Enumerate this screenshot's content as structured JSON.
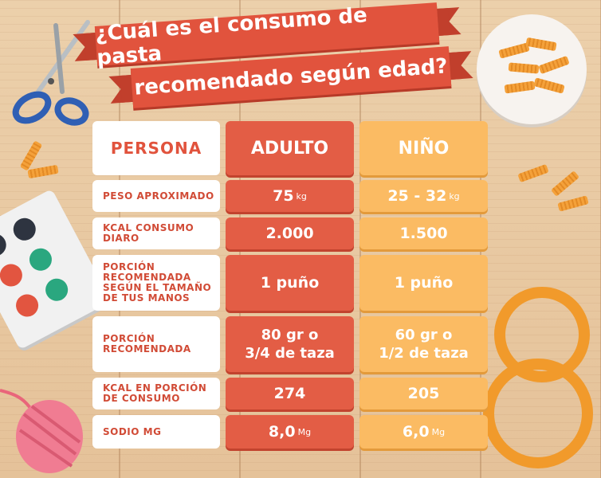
{
  "title": {
    "line1": "¿Cuál es el consumo de pasta",
    "line2": "recomendado según edad?"
  },
  "table": {
    "headers": {
      "label": "PERSONA",
      "adulto": "ADULTO",
      "nino": "NIÑO"
    },
    "rows": [
      {
        "label": "PESO APROXIMADO",
        "adulto": "75",
        "adulto_unit": "kg",
        "nino": "25 - 32",
        "nino_unit": "kg"
      },
      {
        "label": "KCAL CONSUMO DIARO",
        "adulto": "2.000",
        "nino": "1.500"
      },
      {
        "label": "PORCIÓN RECOMENDADA SEGÚN EL TAMAÑO DE TUS MANOS",
        "adulto": "1 puño",
        "nino": "1 puño"
      },
      {
        "label": "PORCIÓN RECOMENDADA",
        "adulto_l1": "80 gr o",
        "adulto_l2": "3/4 de taza",
        "nino_l1": "60 gr o",
        "nino_l2": "1/2 de taza"
      },
      {
        "label": "KCAL EN PORCIÓN DE CONSUMO",
        "adulto": "274",
        "nino": "205"
      },
      {
        "label": "SODIO Mg",
        "adulto": "8,0",
        "adulto_unit": "Mg",
        "nino": "6,0",
        "nino_unit": "Mg"
      }
    ]
  },
  "colors": {
    "adult": "#e35d45",
    "child": "#fbbb63",
    "ribbon": "#e1533d",
    "wood": "#ecd0ab"
  },
  "decorations": [
    "scissors-icon",
    "pasta-plate-icon",
    "paint-palette-icon",
    "yarn-ball-icon",
    "pasta-necklace-icon"
  ]
}
